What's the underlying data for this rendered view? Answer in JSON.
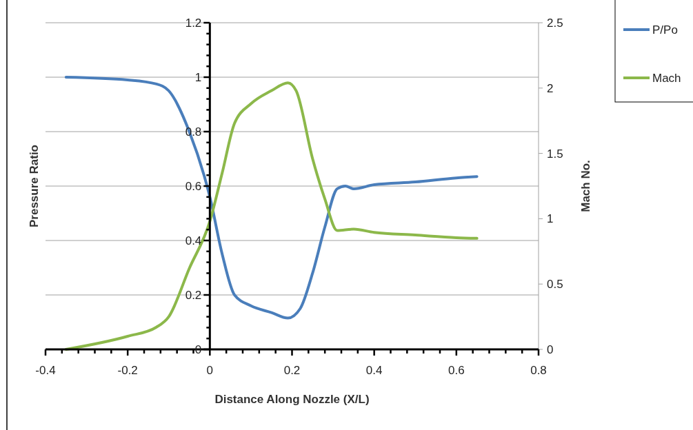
{
  "chart_data": {
    "type": "line",
    "xlabel": "Distance Along Nozzle (X/L)",
    "ylabel": "Pressure Ratio",
    "y2label": "Mach No.",
    "xlim": [
      -0.4,
      0.8
    ],
    "xticks": [
      -0.4,
      {
        "value": -0.36,
        "label": null
      },
      {
        "value": -0.32,
        "label": null
      },
      {
        "value": -0.28,
        "label": null
      },
      {
        "value": -0.24,
        "label": null
      },
      -0.2,
      {
        "value": -0.16,
        "label": null
      },
      {
        "value": -0.12,
        "label": null
      },
      {
        "value": -0.08,
        "label": null
      },
      {
        "value": -0.04,
        "label": null
      },
      0,
      {
        "value": 0.04,
        "label": null
      },
      {
        "value": 0.08,
        "label": null
      },
      {
        "value": 0.12,
        "label": null
      },
      {
        "value": 0.16,
        "label": null
      },
      0.2,
      {
        "value": 0.24,
        "label": null
      },
      {
        "value": 0.28,
        "label": null
      },
      {
        "value": 0.32,
        "label": null
      },
      {
        "value": 0.36,
        "label": null
      },
      0.4,
      {
        "value": 0.44,
        "label": null
      },
      {
        "value": 0.48,
        "label": null
      },
      {
        "value": 0.52,
        "label": null
      },
      {
        "value": 0.56,
        "label": null
      },
      0.6,
      {
        "value": 0.64,
        "label": null
      },
      {
        "value": 0.68,
        "label": null
      },
      {
        "value": 0.72,
        "label": null
      },
      {
        "value": 0.76,
        "label": null
      },
      0.8
    ],
    "ylim": [
      0,
      1.2
    ],
    "yticks": [
      0,
      {
        "value": 0.04,
        "label": null
      },
      {
        "value": 0.08,
        "label": null
      },
      {
        "value": 0.12,
        "label": null
      },
      {
        "value": 0.16,
        "label": null
      },
      0.2,
      {
        "value": 0.24,
        "label": null
      },
      {
        "value": 0.28,
        "label": null
      },
      {
        "value": 0.32,
        "label": null
      },
      {
        "value": 0.36,
        "label": null
      },
      0.4,
      {
        "value": 0.44,
        "label": null
      },
      {
        "value": 0.48,
        "label": null
      },
      {
        "value": 0.52,
        "label": null
      },
      {
        "value": 0.56,
        "label": null
      },
      0.6,
      {
        "value": 0.64,
        "label": null
      },
      {
        "value": 0.68,
        "label": null
      },
      {
        "value": 0.72,
        "label": null
      },
      {
        "value": 0.76,
        "label": null
      },
      0.8,
      {
        "value": 0.84,
        "label": null
      },
      {
        "value": 0.88,
        "label": null
      },
      {
        "value": 0.92,
        "label": null
      },
      {
        "value": 0.96,
        "label": null
      },
      1,
      {
        "value": 1.04,
        "label": null
      },
      {
        "value": 1.08,
        "label": null
      },
      {
        "value": 1.12,
        "label": null
      },
      {
        "value": 1.16,
        "label": null
      },
      1.2
    ],
    "y2lim": [
      0,
      2.5
    ],
    "y2ticks": [
      0,
      0.5,
      1,
      1.5,
      2,
      2.5
    ],
    "grid": "y",
    "legend": "top right",
    "line_style": "solid",
    "marker": "none",
    "series": [
      {
        "name": "P/Po",
        "color": "#4a7ebb",
        "x": [
          -0.35,
          -0.2,
          -0.13,
          -0.1,
          -0.05,
          0,
          0.03,
          0.06,
          0.1,
          0.15,
          0.19,
          0.22,
          0.25,
          0.28,
          0.31,
          0.33,
          0.35,
          0.4,
          0.5,
          0.6,
          0.65
        ],
        "values": [
          1.0,
          0.99,
          0.975,
          0.95,
          0.8,
          0.56,
          0.35,
          0.2,
          0.16,
          0.135,
          0.115,
          0.15,
          0.28,
          0.45,
          0.59,
          0.6,
          0.59,
          0.605,
          0.615,
          0.63,
          0.635
        ]
      },
      {
        "name": "Mach",
        "color": "#8cb84a",
        "axis": "y2",
        "x": [
          -0.35,
          -0.2,
          -0.13,
          -0.1,
          -0.05,
          0,
          0.03,
          0.06,
          0.1,
          0.15,
          0.19,
          0.21,
          0.25,
          0.28,
          0.31,
          0.35,
          0.4,
          0.5,
          0.6,
          0.65
        ],
        "values": [
          0,
          0.1,
          0.17,
          0.25,
          0.62,
          0.98,
          1.35,
          1.73,
          1.88,
          1.98,
          2.04,
          1.98,
          1.46,
          1.15,
          0.91,
          0.92,
          0.895,
          0.875,
          0.855,
          0.85
        ]
      }
    ]
  }
}
